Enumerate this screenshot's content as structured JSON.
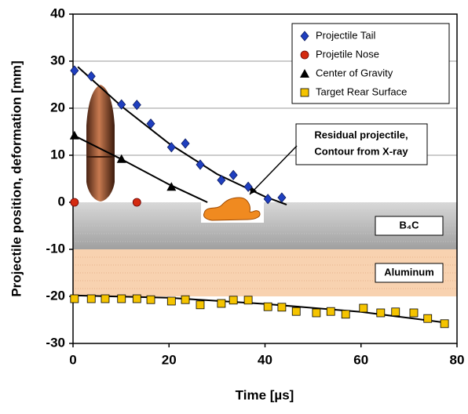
{
  "chart_data": {
    "type": "scatter",
    "xlabel": "Time [µs]",
    "ylabel": "Projectile position, deformation [mm]",
    "xlim": [
      0,
      80
    ],
    "xticks": [
      0,
      20,
      40,
      60,
      80
    ],
    "ylim": [
      -30,
      40
    ],
    "yticks": [
      -30,
      -20,
      -10,
      0,
      10,
      20,
      30,
      40
    ],
    "grid": true,
    "legend": "upper right",
    "layers": [
      {
        "label": "B₄C",
        "range": [
          0,
          -10
        ],
        "color": "#b4b4b4"
      },
      {
        "label": "Aluminum",
        "range": [
          -10,
          -20
        ],
        "color": "#f8d2b0"
      }
    ],
    "annotation": [
      "Residual projectile,",
      "Contour from X-ray"
    ],
    "series": [
      {
        "name": "Projectile Tail",
        "color": "#1f3fbf",
        "marker": "diamond",
        "x": [
          0.3,
          3.8,
          10.1,
          13.3,
          16.2,
          20.5,
          23.4,
          26.5,
          30.9,
          33.4,
          36.5,
          40.6,
          43.5
        ],
        "values": [
          28,
          26.8,
          20.8,
          20.7,
          16.7,
          11.7,
          12.5,
          8,
          4.7,
          5.8,
          3.3,
          0.7,
          1.0
        ],
        "trend": {
          "x": [
            1,
            10,
            20,
            30,
            40,
            44.5
          ],
          "y": [
            28.8,
            20.5,
            12.5,
            6,
            1.2,
            -0.5
          ]
        }
      },
      {
        "name": "Projetile Nose",
        "color": "#d42a10",
        "marker": "circle",
        "x": [
          0.3,
          13.3
        ],
        "values": [
          0,
          0
        ]
      },
      {
        "name": "Center of Gravity",
        "color": "#000000",
        "marker": "triangle",
        "x": [
          0.3,
          10.1,
          20.5
        ],
        "values": [
          14.2,
          9.2,
          3.3
        ],
        "trend": {
          "x": [
            0,
            10,
            20,
            28
          ],
          "y": [
            14.3,
            9.2,
            3.8,
            0
          ]
        }
      },
      {
        "name": "Target Rear Surface",
        "color": "#f5c400",
        "marker": "square",
        "x": [
          0.3,
          3.8,
          6.7,
          10.1,
          13.3,
          16.2,
          20.5,
          23.4,
          26.5,
          30.9,
          33.4,
          36.5,
          40.6,
          43.5,
          46.5,
          50.7,
          53.7,
          56.8,
          60.5,
          64.1,
          67.2,
          71,
          73.9,
          77.4
        ],
        "values": [
          -20.5,
          -20.5,
          -20.5,
          -20.5,
          -20.5,
          -20.7,
          -21,
          -20.7,
          -21.8,
          -21.5,
          -20.8,
          -20.8,
          -22.2,
          -22.3,
          -23.2,
          -23.5,
          -23.2,
          -23.8,
          -22.5,
          -23.5,
          -23.3,
          -23.5,
          -24.7,
          -25.8
        ],
        "trend": {
          "x": [
            0,
            20,
            40,
            60,
            77
          ],
          "y": [
            -19.8,
            -20.3,
            -21.6,
            -23.3,
            -25.5
          ]
        }
      }
    ]
  }
}
